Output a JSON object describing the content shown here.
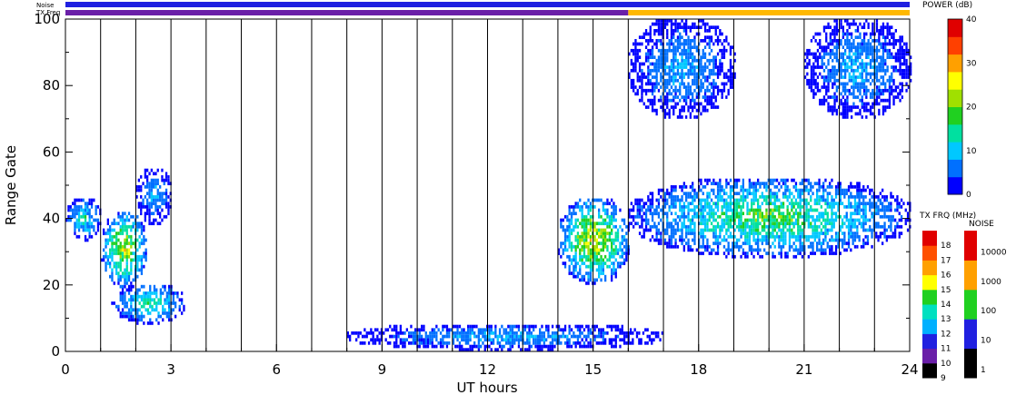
{
  "chart_data": {
    "type": "heatmap",
    "title": "",
    "xlabel": "UT hours",
    "ylabel": "Range Gate",
    "xlim": [
      0,
      24
    ],
    "ylim": [
      0,
      100
    ],
    "x_ticks": [
      0,
      3,
      6,
      9,
      12,
      15,
      18,
      21,
      24
    ],
    "y_ticks": [
      0,
      20,
      40,
      60,
      80,
      100
    ],
    "vertical_lines_hours": [
      1,
      2,
      3,
      4,
      5,
      6,
      7,
      8,
      9,
      10,
      11,
      12,
      13,
      14,
      15,
      16,
      17,
      18,
      19,
      20,
      21,
      22,
      23
    ],
    "top_strips": {
      "noise_label": "Noise",
      "txfreq_label": "TX Freq",
      "noise_color": "#1f1fe0",
      "txfreq_segments": [
        {
          "from": 0,
          "to": 16,
          "color": "#6a1fa8"
        },
        {
          "from": 16,
          "to": 24,
          "color": "#ffb800"
        }
      ]
    },
    "power_colorbar": {
      "title": "POWER (dB)",
      "min": 0,
      "max": 40,
      "ticks": [
        0,
        10,
        20,
        30,
        40
      ],
      "colors": [
        "#0000ff",
        "#0070ff",
        "#00c8ff",
        "#00e0a0",
        "#20d020",
        "#a0e000",
        "#ffff00",
        "#ffa000",
        "#ff4000",
        "#e00000"
      ]
    },
    "txfreq_colorbar": {
      "title": "TX FRQ (MHz)",
      "ticks": [
        9,
        10,
        11,
        12,
        13,
        14,
        15,
        16,
        17,
        18
      ],
      "colors": [
        "#000000",
        "#6a1fa8",
        "#2020e0",
        "#00b0ff",
        "#00e0c0",
        "#20d020",
        "#ffff00",
        "#ffa000",
        "#ff5000",
        "#e00000"
      ]
    },
    "noise_colorbar": {
      "title": "NOISE",
      "ticks": [
        "1",
        "10",
        "100",
        "1000",
        "10000"
      ],
      "colors": [
        "#000000",
        "#2020e0",
        "#20d020",
        "#ffa000",
        "#e00000"
      ]
    },
    "echo_regions": [
      {
        "x": [
          0.0,
          1.0
        ],
        "y": [
          33,
          46
        ],
        "peak_power": 18
      },
      {
        "x": [
          1.0,
          2.3
        ],
        "y": [
          19,
          42
        ],
        "peak_power": 32
      },
      {
        "x": [
          1.3,
          3.4
        ],
        "y": [
          8,
          20
        ],
        "peak_power": 20
      },
      {
        "x": [
          2.0,
          3.0
        ],
        "y": [
          38,
          55
        ],
        "peak_power": 12
      },
      {
        "x": [
          14.0,
          16.0
        ],
        "y": [
          20,
          46
        ],
        "peak_power": 34
      },
      {
        "x": [
          16.0,
          24.0
        ],
        "y": [
          28,
          52
        ],
        "peak_power": 24
      },
      {
        "x": [
          8.0,
          17.0
        ],
        "y": [
          0,
          8
        ],
        "peak_power": 12
      },
      {
        "x": [
          16.0,
          19.0
        ],
        "y": [
          70,
          100
        ],
        "peak_power": 12
      },
      {
        "x": [
          21.0,
          24.0
        ],
        "y": [
          70,
          100
        ],
        "peak_power": 12
      }
    ]
  }
}
